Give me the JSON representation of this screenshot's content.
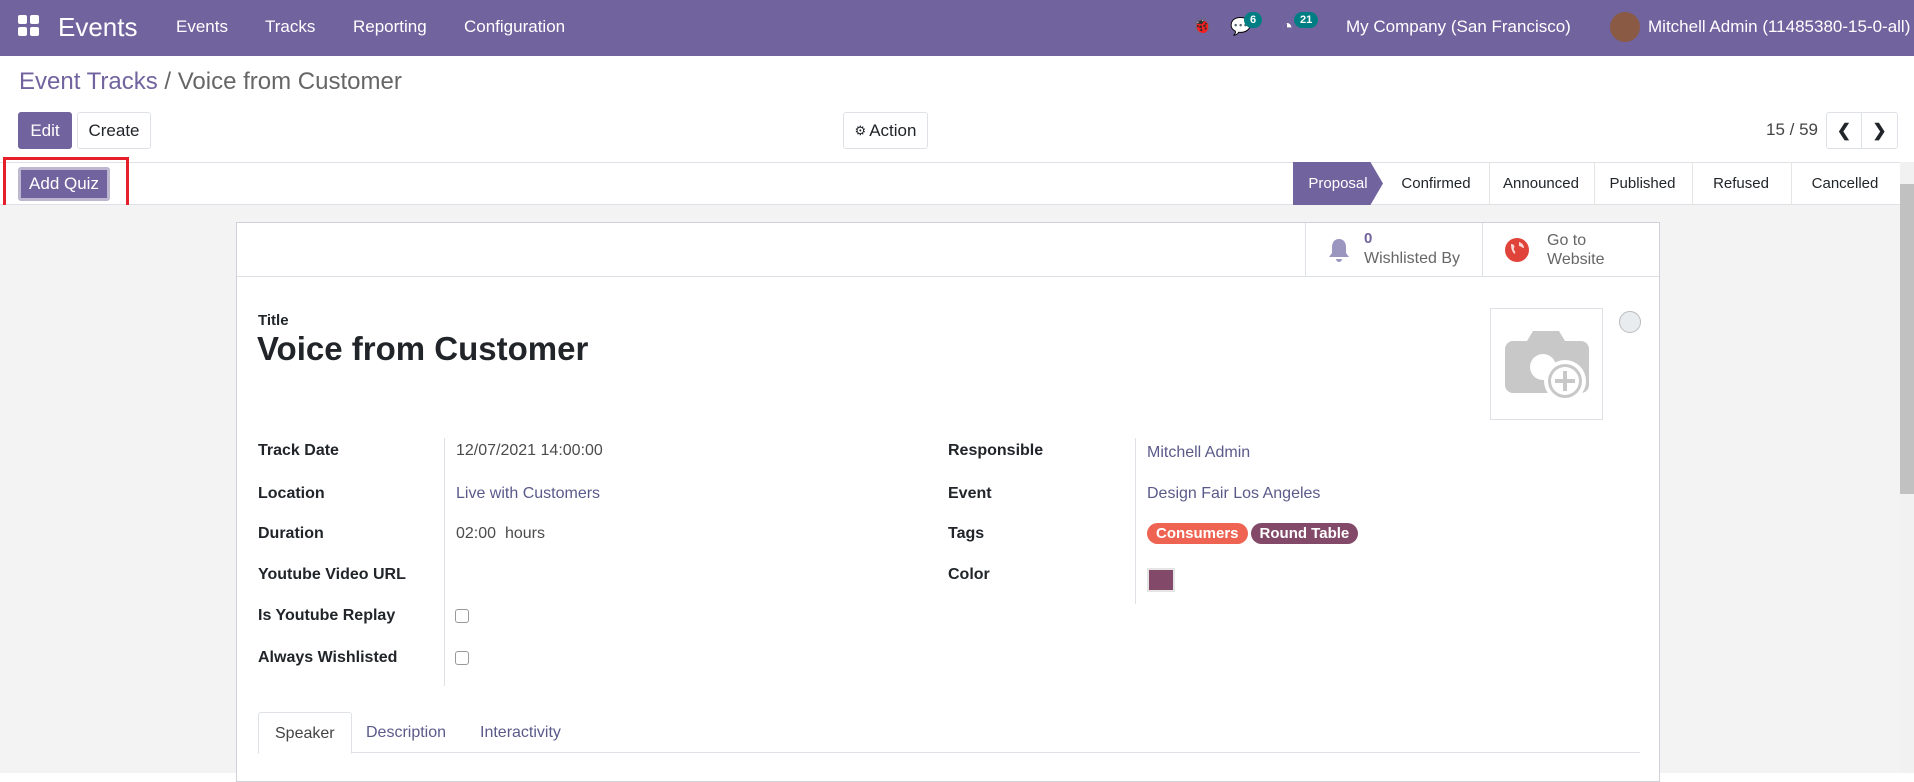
{
  "navbar": {
    "app_name": "Events",
    "menu": [
      "Events",
      "Tracks",
      "Reporting",
      "Configuration"
    ],
    "messages_count": "6",
    "activities_count": "21",
    "company": "My Company (San Francisco)",
    "user": "Mitchell Admin (11485380-15-0-all)",
    "bg_color": "#71639e"
  },
  "breadcrumb": {
    "parent": "Event Tracks",
    "separator": "/",
    "current": "Voice from Customer"
  },
  "toolbar": {
    "edit": "Edit",
    "create": "Create",
    "action": "Action",
    "pager": "15 / 59"
  },
  "statusbar": {
    "add_quiz": "Add Quiz",
    "stages": [
      "Proposal",
      "Confirmed",
      "Announced",
      "Published",
      "Refused",
      "Cancelled"
    ],
    "active_stage": "Proposal"
  },
  "button_box": {
    "wishlist_count": "0",
    "wishlist_label": "Wishlisted By",
    "website_label_1": "Go to",
    "website_label_2": "Website"
  },
  "form": {
    "title_label": "Title",
    "title": "Voice from Customer",
    "left": [
      {
        "label": "Track Date",
        "value": "12/07/2021 14:00:00"
      },
      {
        "label": "Location",
        "value": "Live with Customers"
      },
      {
        "label": "Duration",
        "value": "02:00",
        "unit": "hours"
      },
      {
        "label": "Youtube Video URL",
        "value": ""
      },
      {
        "label": "Is Youtube Replay",
        "checked": false
      },
      {
        "label": "Always Wishlisted",
        "checked": false
      }
    ],
    "right": [
      {
        "label": "Responsible",
        "value": "Mitchell Admin"
      },
      {
        "label": "Event",
        "value": "Design Fair Los Angeles"
      },
      {
        "label": "Tags",
        "tags": [
          {
            "name": "Consumers",
            "color": "#ee6352"
          },
          {
            "name": "Round Table",
            "color": "#824a68"
          }
        ]
      },
      {
        "label": "Color",
        "color": "#824a68"
      }
    ]
  },
  "tabs": [
    "Speaker",
    "Description",
    "Interactivity"
  ],
  "active_tab": "Speaker"
}
